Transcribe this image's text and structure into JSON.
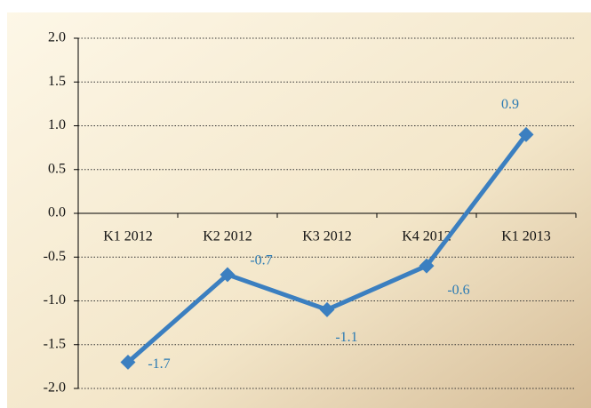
{
  "chart_data": {
    "type": "line",
    "categories": [
      "K1 2012",
      "K2 2012",
      "K3 2012",
      "K4 2012",
      "K1 2013"
    ],
    "series": [
      {
        "color": "#3b7fc0",
        "values": [
          -1.7,
          -0.7,
          -1.1,
          -0.6,
          0.9
        ]
      }
    ],
    "ylim": [
      -2,
      2
    ],
    "yticks": [
      {
        "value": -2,
        "label": "-2.0"
      },
      {
        "value": -1.5,
        "label": "-1.5"
      },
      {
        "value": -1,
        "label": "-1.0"
      },
      {
        "value": -0.5,
        "label": "-0.5"
      },
      {
        "value": 0,
        "label": "0.0"
      },
      {
        "value": 0.5,
        "label": "0.5"
      },
      {
        "value": 1,
        "label": "1.0"
      },
      {
        "value": 1.5,
        "label": "1.5"
      },
      {
        "value": 2,
        "label": "2.0"
      }
    ],
    "grid": true
  }
}
